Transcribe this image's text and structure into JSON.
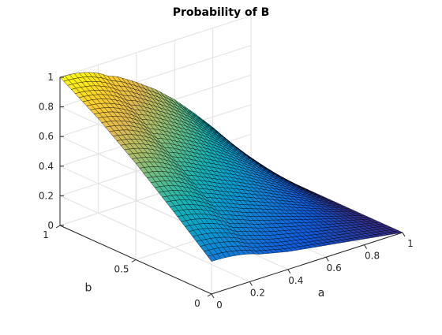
{
  "chart_data": {
    "type": "surface",
    "title": "Probability of B",
    "xlabel": "a",
    "ylabel": "b",
    "zlabel": "",
    "xlim": [
      0,
      1
    ],
    "ylim": [
      0,
      1
    ],
    "zlim": [
      0,
      1
    ],
    "x_ticks": [
      "0",
      "0.2",
      "0.4",
      "0.6",
      "0.8",
      "1"
    ],
    "y_ticks": [
      "0",
      "0.5",
      "1"
    ],
    "z_ticks": [
      "0",
      "0.2",
      "0.4",
      "0.6",
      "0.8",
      "1"
    ],
    "grid": true,
    "colormap": "parula",
    "edge_color": "#000000",
    "surface": {
      "a_samples": [
        0,
        0.1,
        0.2,
        0.3,
        0.4,
        0.5,
        0.6,
        0.7,
        0.8,
        0.9,
        1
      ],
      "b_samples": [
        0,
        0.25,
        0.5,
        0.75,
        1
      ],
      "z_at_a0": [
        0.22,
        0.44,
        0.65,
        0.84,
        1.0
      ],
      "z_at_b1": [
        1.0,
        0.97,
        0.93,
        0.88,
        0.8,
        0.71,
        0.6,
        0.47,
        0.33,
        0.17,
        0.0
      ],
      "z_at_b0": [
        0.22,
        0.2,
        0.18,
        0.15,
        0.12,
        0.1,
        0.08,
        0.06,
        0.04,
        0.02,
        0.0
      ],
      "z_at_a1": [
        0.0,
        0.0,
        0.0,
        0.0,
        0.0
      ]
    }
  }
}
